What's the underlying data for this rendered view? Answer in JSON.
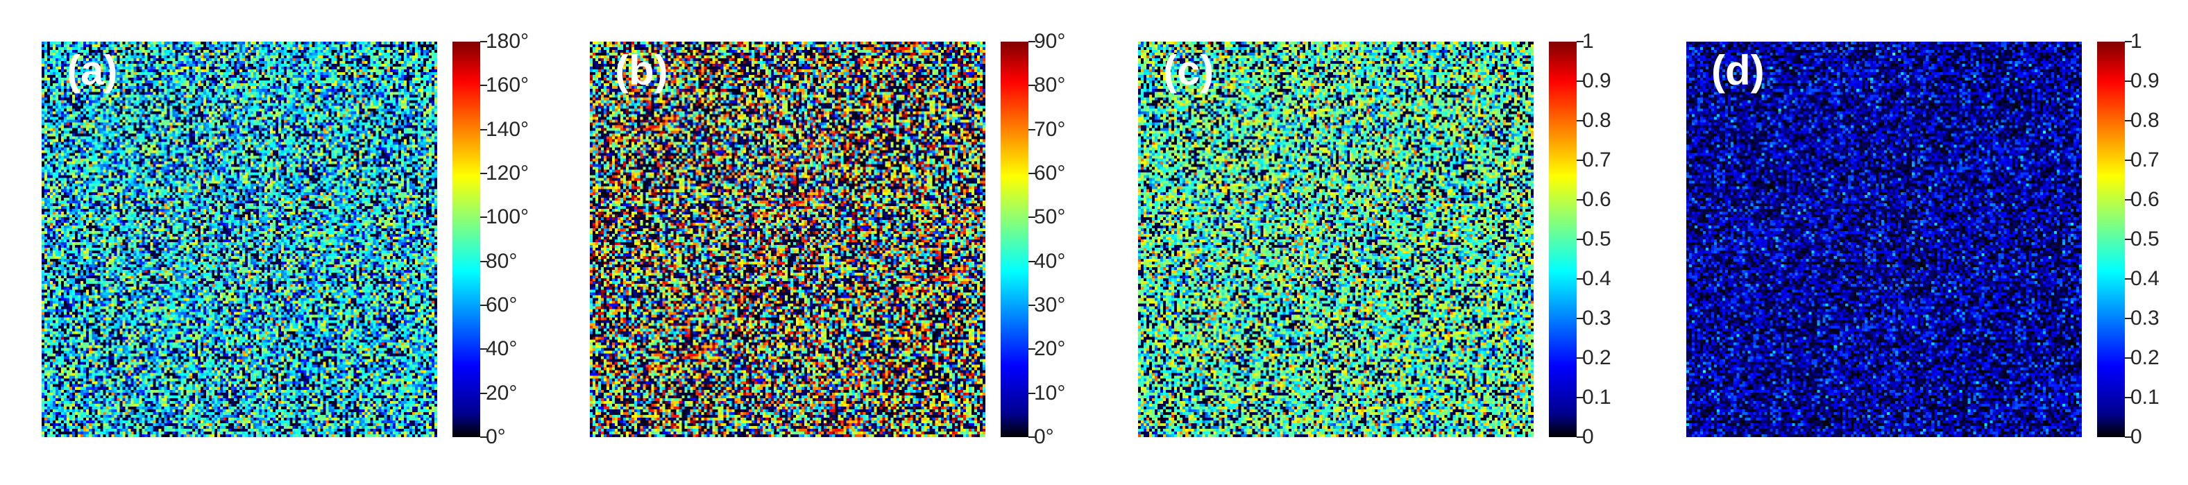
{
  "chart_data": [
    {
      "type": "heatmap",
      "panel_label": "(a)",
      "colormap": "jet",
      "clim": [
        0,
        180
      ],
      "colorbar_ticks": [
        "0°",
        "20°",
        "40°",
        "60°",
        "80°",
        "100°",
        "120°",
        "140°",
        "160°",
        "180°"
      ],
      "colorbar_tick_values": [
        0,
        20,
        40,
        60,
        80,
        100,
        120,
        140,
        160,
        180
      ],
      "value_distribution": "noise, mostly 40°–110°, with black gaps and sparse orange/red"
    },
    {
      "type": "heatmap",
      "panel_label": "(b)",
      "colormap": "jet",
      "clim": [
        0,
        90
      ],
      "colorbar_ticks": [
        "0°",
        "10°",
        "20°",
        "30°",
        "40°",
        "50°",
        "60°",
        "70°",
        "80°",
        "90°"
      ],
      "colorbar_tick_values": [
        0,
        10,
        20,
        30,
        40,
        50,
        60,
        70,
        80,
        90
      ],
      "value_distribution": "noise across full range, many red/orange and black pixels"
    },
    {
      "type": "heatmap",
      "panel_label": "(c)",
      "colormap": "jet",
      "clim": [
        0,
        1
      ],
      "colorbar_ticks": [
        "0",
        "0.1",
        "0.2",
        "0.3",
        "0.4",
        "0.5",
        "0.6",
        "0.7",
        "0.8",
        "0.9",
        "1"
      ],
      "colorbar_tick_values": [
        0,
        0.1,
        0.2,
        0.3,
        0.4,
        0.5,
        0.6,
        0.7,
        0.8,
        0.9,
        1
      ],
      "value_distribution": "noise mostly 0.3–0.7 (cyan/green/yellow) with black gaps"
    },
    {
      "type": "heatmap",
      "panel_label": "(d)",
      "colormap": "jet",
      "clim": [
        0,
        1
      ],
      "colorbar_ticks": [
        "0",
        "0.1",
        "0.2",
        "0.3",
        "0.4",
        "0.5",
        "0.6",
        "0.7",
        "0.8",
        "0.9",
        "1"
      ],
      "colorbar_tick_values": [
        0,
        0.1,
        0.2,
        0.3,
        0.4,
        0.5,
        0.6,
        0.7,
        0.8,
        0.9,
        1
      ],
      "value_distribution": "noise mostly 0–0.25 (black/dark blue) with sparse cyan"
    }
  ]
}
